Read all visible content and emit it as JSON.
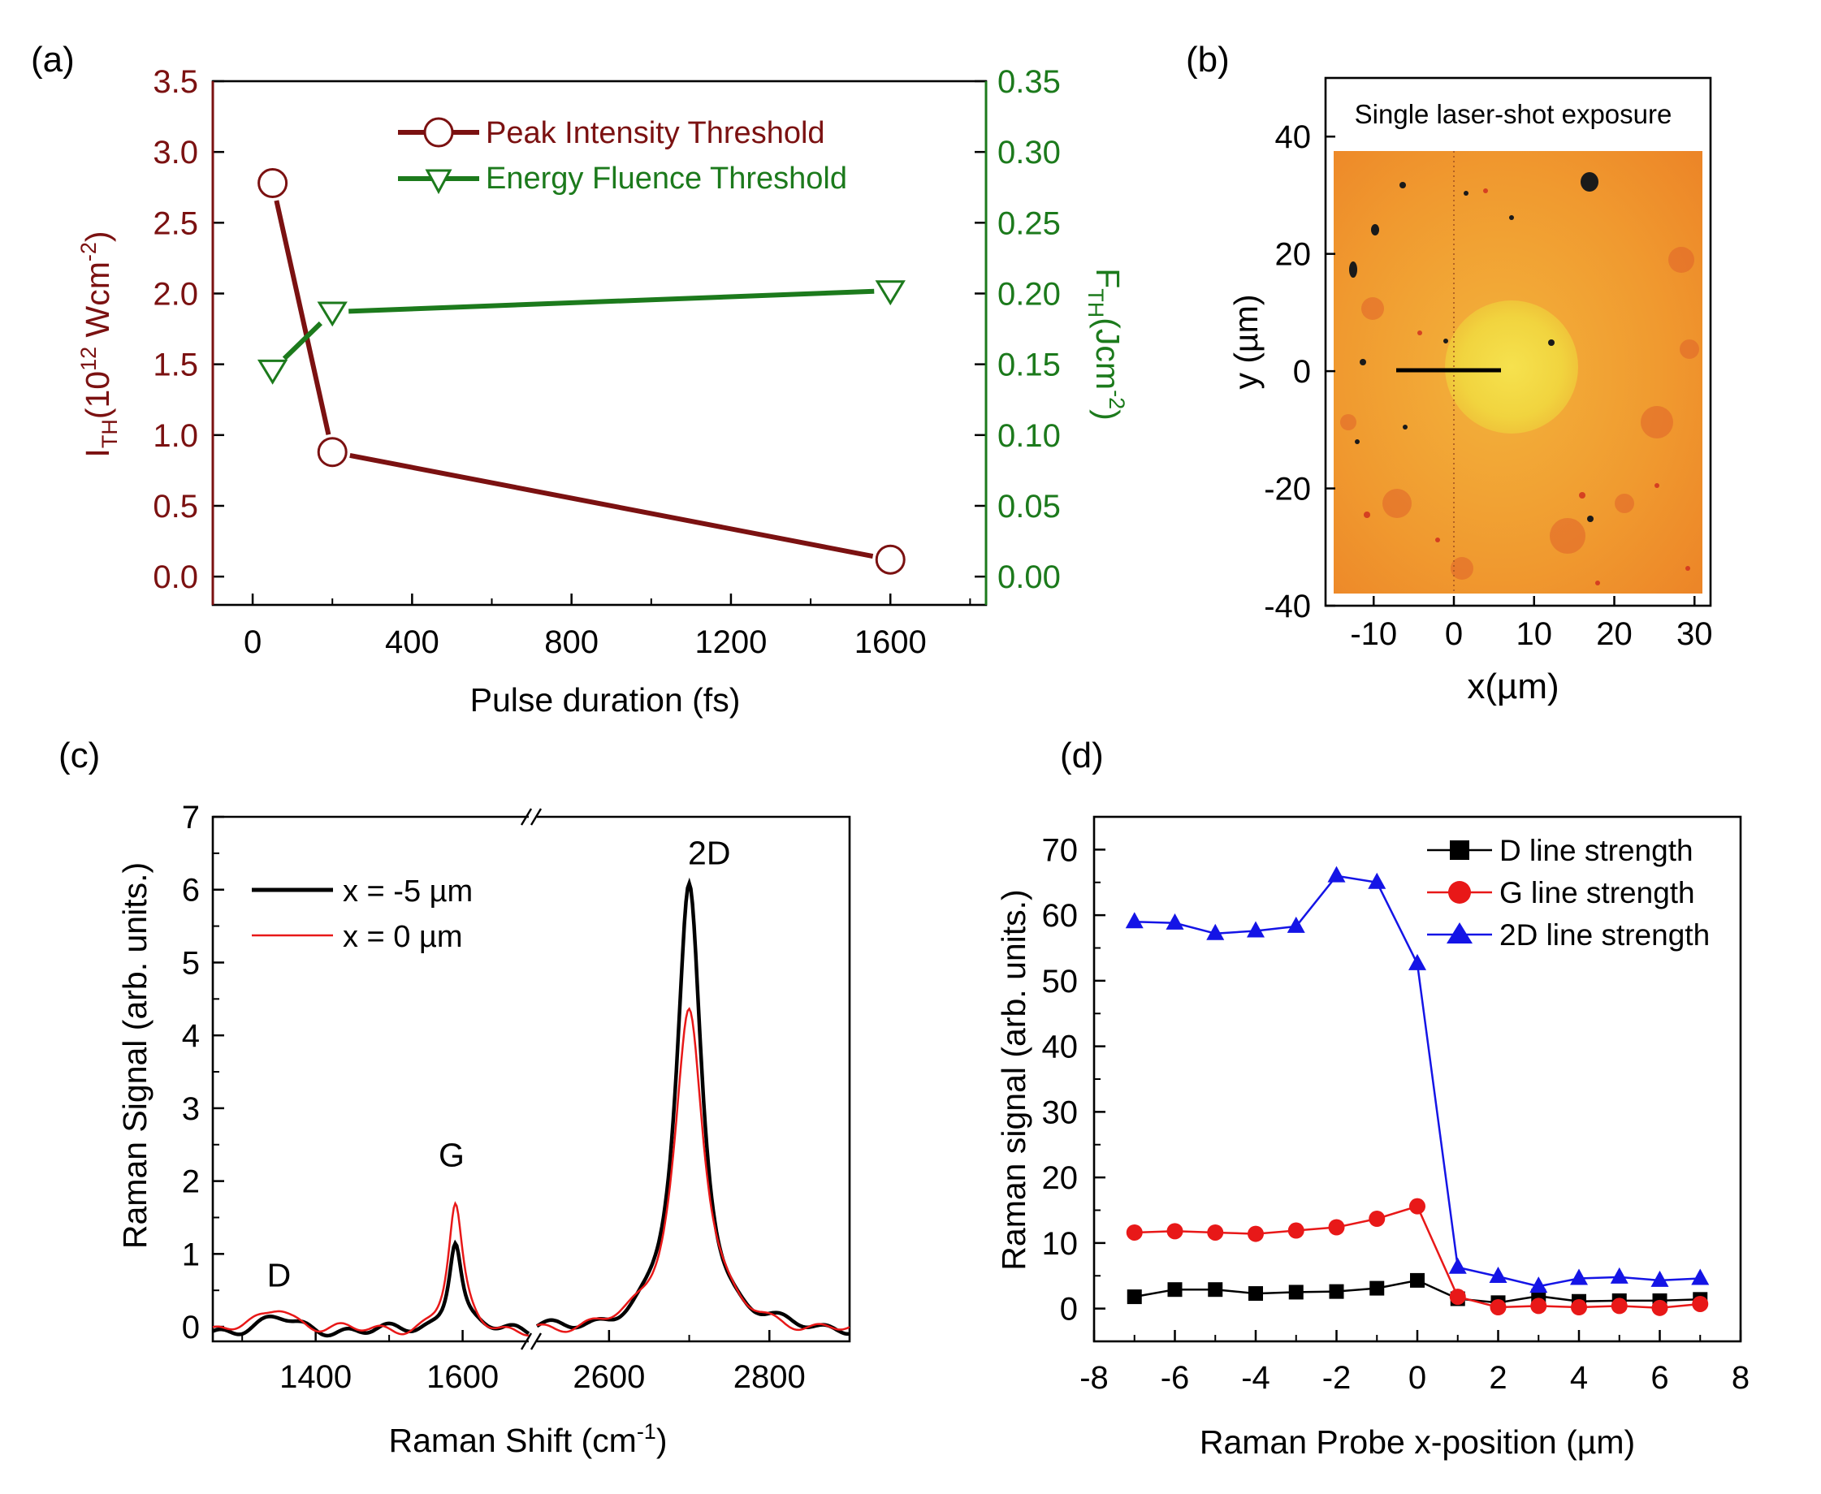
{
  "panels": {
    "a": {
      "label": "(a)"
    },
    "b": {
      "label": "(b)"
    },
    "c": {
      "label": "(c)"
    },
    "d": {
      "label": "(d)"
    }
  },
  "colors": {
    "intensity": "#7b1111",
    "fluence": "#1c7a1c",
    "d_line": "#000000",
    "g_line": "#e81818",
    "two_d_line": "#1414e6",
    "spot_bg": "#f2a23a",
    "spot_center": "#f3dc46"
  },
  "chart_data": [
    {
      "id": "a",
      "type": "line",
      "title": "",
      "xlabel": "Pulse duration (fs)",
      "ylabel_left": "I_TH(10^12 Wcm^-2)",
      "ylabel_right": "F_TH(Jcm^-2)",
      "xlim": [
        -100,
        1840
      ],
      "x_ticks": [
        "0",
        "400",
        "800",
        "1200",
        "1600"
      ],
      "ylim_left": [
        -0.2,
        3.5
      ],
      "y_ticks_left": [
        "0.0",
        "0.5",
        "1.0",
        "1.5",
        "2.0",
        "2.5",
        "3.0",
        "3.5"
      ],
      "ylim_right": [
        -0.02,
        0.35
      ],
      "y_ticks_right": [
        "0.00",
        "0.05",
        "0.10",
        "0.15",
        "0.20",
        "0.25",
        "0.30",
        "0.35"
      ],
      "legend_position": "top-right",
      "series": [
        {
          "name": "Peak Intensity Threshold",
          "axis": "left",
          "marker": "circle",
          "x": [
            50,
            200,
            1600
          ],
          "values": [
            2.78,
            0.88,
            0.12
          ]
        },
        {
          "name": "Energy Fluence Threshold",
          "axis": "right",
          "marker": "triangle-down",
          "x": [
            50,
            200,
            1600
          ],
          "values": [
            0.146,
            0.187,
            0.202
          ]
        }
      ]
    },
    {
      "id": "b",
      "type": "image",
      "title": "Single laser-shot exposure",
      "xlabel": "x(µm)",
      "ylabel": "y (µm)",
      "xlim": [
        -16,
        32
      ],
      "x_ticks": [
        "-10",
        "0",
        "10",
        "20",
        "30"
      ],
      "ylim": [
        -40,
        50
      ],
      "y_ticks": [
        "40",
        "20",
        "0",
        "-20",
        "-40"
      ],
      "spot": {
        "center_x": 5,
        "center_y": 0,
        "radius": 12
      },
      "scan_line": {
        "x": [
          -7,
          6
        ],
        "y": 0
      }
    },
    {
      "id": "c",
      "type": "line",
      "title": "",
      "xlabel": "Raman Shift (cm⁻¹)",
      "ylabel": "Raman Signal (arb. units.)",
      "x_ticks": [
        "1400",
        "1600",
        "2600",
        "2800"
      ],
      "xlim_left": [
        1260,
        1690
      ],
      "xlim_right": [
        2510,
        2900
      ],
      "ylim": [
        -0.2,
        7
      ],
      "y_ticks": [
        "0",
        "1",
        "2",
        "3",
        "4",
        "5",
        "6",
        "7"
      ],
      "legend_position": "top-left",
      "peak_labels": [
        {
          "text": "D",
          "x": 1350,
          "y": 0.55
        },
        {
          "text": "G",
          "x": 1585,
          "y": 2.2
        },
        {
          "text": "2D",
          "x": 2725,
          "y": 6.35
        }
      ],
      "series": [
        {
          "name": "x = -5 µm",
          "color": "#000000",
          "peaks": [
            [
              1350,
              0.18,
              28
            ],
            [
              1590,
              1.28,
              11
            ],
            [
              2700,
              6.1,
              19
            ]
          ]
        },
        {
          "name": "x = 0 µm",
          "color": "#e81818",
          "peaks": [
            [
              1350,
              0.34,
              26
            ],
            [
              1590,
              1.72,
              12
            ],
            [
              2700,
              4.45,
              22
            ]
          ]
        }
      ]
    },
    {
      "id": "d",
      "type": "line",
      "title": "",
      "xlabel": "Raman Probe x-position (µm)",
      "ylabel": "Raman signal (arb. units.)",
      "xlim": [
        -8,
        8
      ],
      "x_ticks": [
        "-8",
        "-6",
        "-4",
        "-2",
        "0",
        "2",
        "4",
        "6",
        "8"
      ],
      "ylim": [
        -5,
        75
      ],
      "y_ticks": [
        "0",
        "10",
        "20",
        "30",
        "40",
        "50",
        "60",
        "70"
      ],
      "legend_position": "top-right",
      "x": [
        -7,
        -6,
        -5,
        -4,
        -3,
        -2,
        -1,
        0,
        1,
        2,
        3,
        4,
        5,
        6,
        7
      ],
      "series": [
        {
          "name": "D line strength",
          "marker": "square",
          "color": "#000000",
          "values": [
            1.8,
            2.9,
            2.9,
            2.3,
            2.5,
            2.6,
            3.1,
            4.3,
            1.5,
            0.9,
            1.9,
            1.1,
            1.2,
            1.2,
            1.4
          ]
        },
        {
          "name": "G line strength",
          "marker": "circle",
          "color": "#e81818",
          "values": [
            11.6,
            11.8,
            11.6,
            11.4,
            11.9,
            12.4,
            13.7,
            15.6,
            1.8,
            0.2,
            0.4,
            0.2,
            0.4,
            0.1,
            0.7
          ]
        },
        {
          "name": "2D line strength",
          "marker": "triangle-up",
          "color": "#1414e6",
          "values": [
            59.0,
            58.8,
            57.2,
            57.6,
            58.3,
            66.0,
            65.0,
            52.6,
            6.3,
            4.9,
            3.4,
            4.6,
            4.8,
            4.3,
            4.6
          ]
        }
      ]
    }
  ]
}
